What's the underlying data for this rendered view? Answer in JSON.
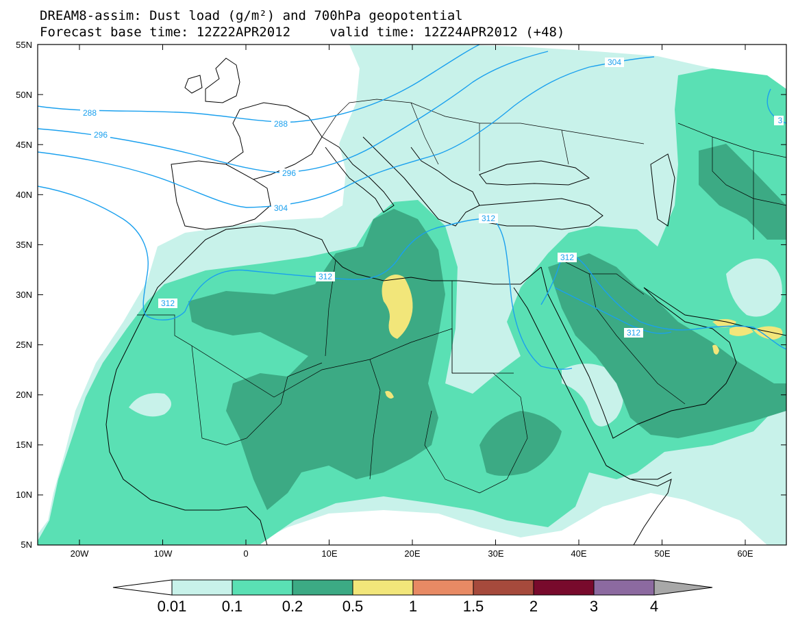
{
  "title": {
    "line1": "DREAM8-assim: Dust load (g/m²) and 700hPa geopotential",
    "line2": "Forecast base time: 12Z22APR2012     valid time: 12Z24APR2012 (+48)"
  },
  "axes": {
    "lat_labels": [
      "55N",
      "50N",
      "45N",
      "40N",
      "35N",
      "30N",
      "25N",
      "20N",
      "15N",
      "10N",
      "5N"
    ],
    "lon_labels": [
      "20W",
      "10W",
      "0",
      "10E",
      "20E",
      "30E",
      "40E",
      "50E",
      "60E"
    ]
  },
  "colors": {
    "c001": "#c8f2ea",
    "c01": "#5ae0b4",
    "c02": "#3caa84",
    "c05": "#f2e67a",
    "c1": "#e88a64",
    "c15": "#a64a3c",
    "c2": "#780a2c",
    "c3": "#8c6aa0",
    "c4": "#a8a8a8",
    "contour": "#1aa0ee",
    "coast": "#000000"
  },
  "colorbar": {
    "labels": [
      "0.01",
      "0.1",
      "0.2",
      "0.5",
      "1",
      "1.5",
      "2",
      "3",
      "4"
    ]
  },
  "contours": {
    "labels": [
      "288",
      "288",
      "296",
      "296",
      "304",
      "304",
      "312",
      "312",
      "312",
      "312",
      "312",
      "3"
    ]
  }
}
